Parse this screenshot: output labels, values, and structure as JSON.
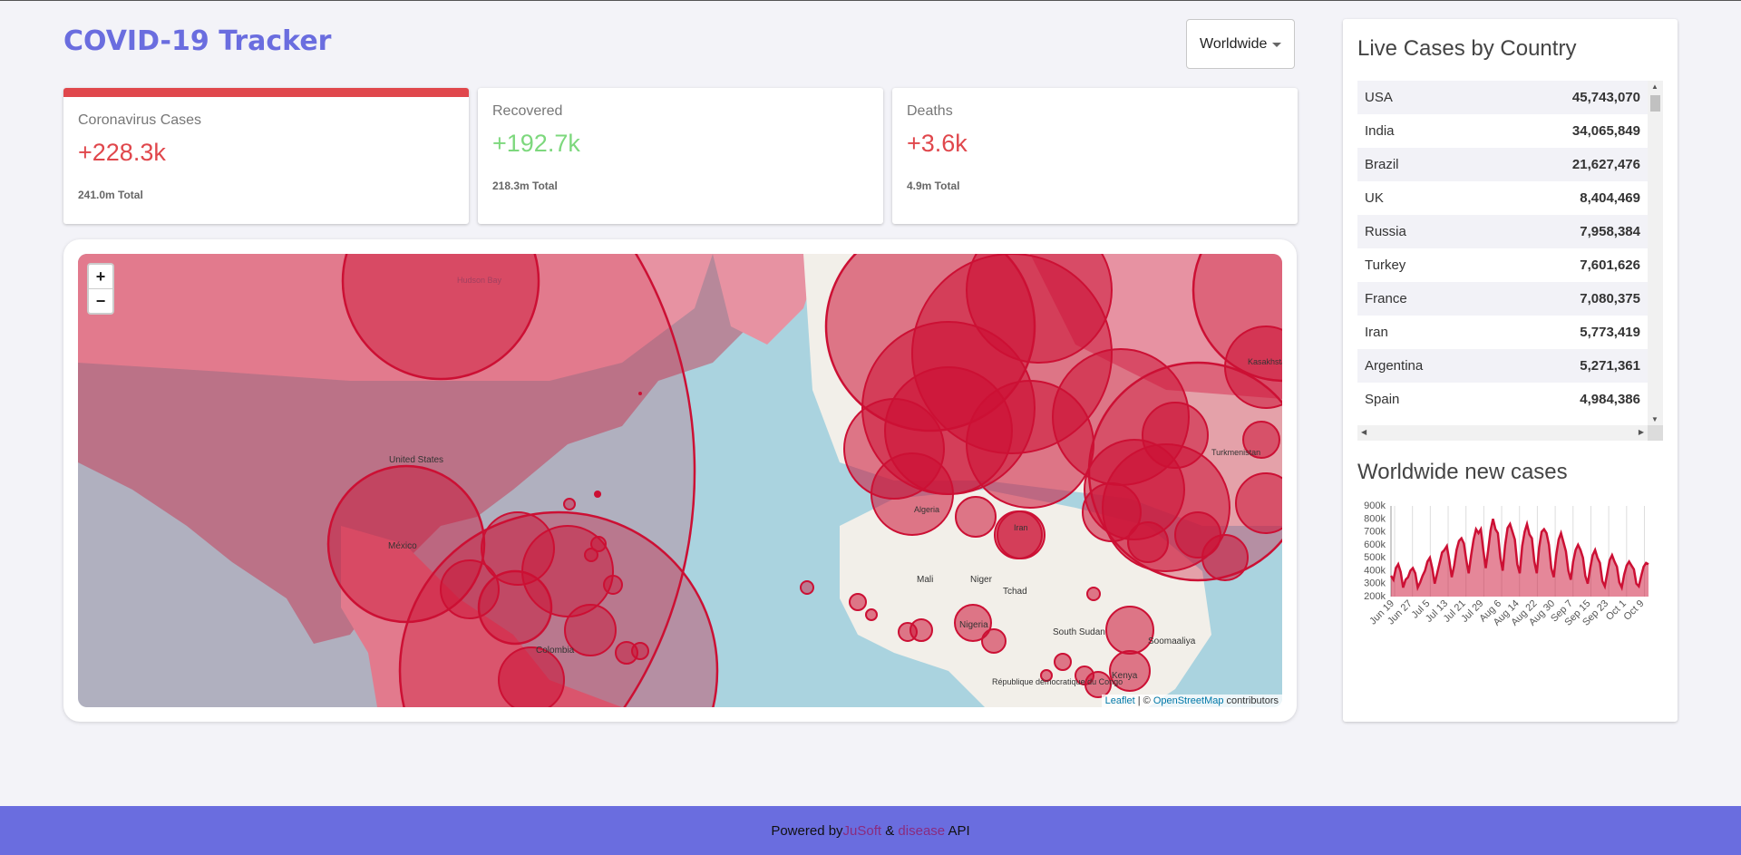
{
  "header": {
    "title": "COVID-19 Tracker"
  },
  "country_select": {
    "selected": "Worldwide"
  },
  "stats": [
    {
      "label": "Coronavirus Cases",
      "value": "+228.3k",
      "total": "241.0m Total",
      "color": "#e0474c",
      "active": true
    },
    {
      "label": "Recovered",
      "value": "+192.7k",
      "total": "218.3m Total",
      "color": "#7dd87d",
      "active": false
    },
    {
      "label": "Deaths",
      "value": "+3.6k",
      "total": "4.9m Total",
      "color": "#e0474c",
      "active": false
    }
  ],
  "map": {
    "zoom_in": "+",
    "zoom_out": "−",
    "attribution": {
      "leaflet": "Leaflet",
      "separator": " | © ",
      "osm": "OpenStreetMap",
      "suffix": " contributors"
    },
    "labels": [
      "Hudson Bay",
      "United States",
      "México",
      "Colombia",
      "Mali",
      "Niger",
      "Tchad",
      "Nigeria",
      "South Sudan",
      "Kenya",
      "Soomaaliya",
      "République démocratique du Congo",
      "Kasakhstan",
      "Turkmenistan",
      "Iran",
      "Algeria"
    ]
  },
  "live_cases": {
    "title": "Live Cases by Country",
    "rows": [
      {
        "country": "USA",
        "cases": "45,743,070"
      },
      {
        "country": "India",
        "cases": "34,065,849"
      },
      {
        "country": "Brazil",
        "cases": "21,627,476"
      },
      {
        "country": "UK",
        "cases": "8,404,469"
      },
      {
        "country": "Russia",
        "cases": "7,958,384"
      },
      {
        "country": "Turkey",
        "cases": "7,601,626"
      },
      {
        "country": "France",
        "cases": "7,080,375"
      },
      {
        "country": "Iran",
        "cases": "5,773,419"
      },
      {
        "country": "Argentina",
        "cases": "5,271,361"
      },
      {
        "country": "Spain",
        "cases": "4,984,386"
      }
    ]
  },
  "new_cases": {
    "title": "Worldwide new cases"
  },
  "chart_data": {
    "type": "area",
    "title": "",
    "xlabel": "",
    "ylabel": "",
    "y_ticks": [
      "200k",
      "300k",
      "400k",
      "500k",
      "600k",
      "700k",
      "800k",
      "900k"
    ],
    "ylim": [
      200000,
      900000
    ],
    "x_ticks": [
      "Jun 19",
      "Jun 27",
      "Jul 5",
      "Jul 13",
      "Jul 21",
      "Jul 29",
      "Aug 6",
      "Aug 14",
      "Aug 22",
      "Aug 30",
      "Sep 7",
      "Sep 15",
      "Sep 23",
      "Oct 1",
      "Oct 9"
    ],
    "line_color": "#cc1034",
    "fill_color": "rgba(204,16,52,0.5)",
    "grid": true,
    "values": [
      360000,
      330000,
      420000,
      450000,
      390000,
      270000,
      330000,
      350000,
      400000,
      420000,
      380000,
      270000,
      310000,
      360000,
      400000,
      470000,
      500000,
      420000,
      300000,
      380000,
      460000,
      540000,
      560000,
      590000,
      480000,
      350000,
      440000,
      560000,
      630000,
      650000,
      610000,
      480000,
      380000,
      520000,
      640000,
      720000,
      690000,
      720000,
      560000,
      420000,
      560000,
      710000,
      800000,
      720000,
      690000,
      500000,
      400000,
      600000,
      730000,
      760000,
      700000,
      640000,
      450000,
      380000,
      590000,
      700000,
      760000,
      680000,
      650000,
      470000,
      380000,
      580000,
      700000,
      720000,
      690000,
      600000,
      420000,
      350000,
      520000,
      640000,
      690000,
      620000,
      550000,
      400000,
      330000,
      470000,
      560000,
      600000,
      560000,
      500000,
      360000,
      300000,
      420000,
      520000,
      560000,
      500000,
      460000,
      320000,
      280000,
      380000,
      480000,
      520000,
      470000,
      430000,
      310000,
      270000,
      370000,
      440000,
      470000,
      440000,
      410000,
      300000,
      280000,
      360000,
      430000,
      460000,
      450000
    ]
  },
  "footer": {
    "prefix": "Powered by ",
    "link1": "JuSoft",
    "amp": " & ",
    "link2": "disease",
    "suffix": " API"
  }
}
